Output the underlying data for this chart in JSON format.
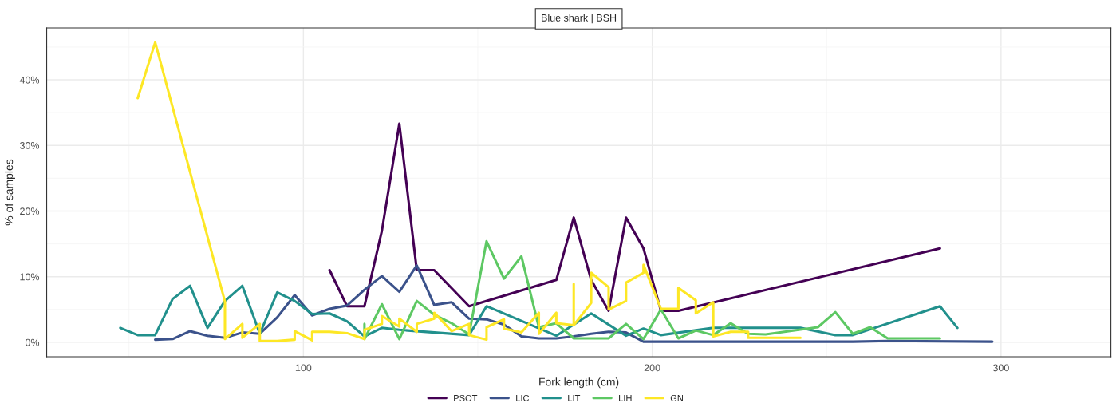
{
  "chart_data": {
    "type": "line",
    "title": "Blue shark | BSH",
    "xlabel": "Fork length (cm)",
    "ylabel": "% of samples",
    "xlim": [
      26.4,
      331.5
    ],
    "ylim": [
      -2.2,
      47.9
    ],
    "xticks": [
      100,
      200,
      300
    ],
    "yticks": [
      {
        "value": 0,
        "label": "0%"
      },
      {
        "value": 10,
        "label": "10%"
      },
      {
        "value": 20,
        "label": "20%"
      },
      {
        "value": 30,
        "label": "30%"
      },
      {
        "value": 40,
        "label": "40%"
      }
    ],
    "grid": true,
    "legend": "bottom",
    "line_style": "solid",
    "marker": "none",
    "series": [
      {
        "name": "PSOT",
        "color": "#440154",
        "x": [
          107.5,
          112.5,
          117.5,
          122.5,
          127.5,
          132.5,
          137.5,
          147.5,
          172.5,
          177.5,
          182.5,
          187.5,
          192.5,
          197.5,
          202.5,
          207.5,
          282.5
        ],
        "values": [
          11,
          5.5,
          5.5,
          17,
          33.3,
          11,
          11,
          5.5,
          9.5,
          19,
          9.5,
          4.8,
          19,
          14.3,
          4.8,
          4.8,
          14.3
        ]
      },
      {
        "name": "LIC",
        "color": "#3b528b",
        "x": [
          57.5,
          62.5,
          67.5,
          72.5,
          77.5,
          82.5,
          87.5,
          92.5,
          97.5,
          102.5,
          107.5,
          112.5,
          117.5,
          122.5,
          127.5,
          132.5,
          137.5,
          142.5,
          147.5,
          152.5,
          157.5,
          162.5,
          167.5,
          172.5,
          177.5,
          182.5,
          187.5,
          192.5,
          197.5,
          217.5,
          257.5,
          267.5,
          297.5
        ],
        "values": [
          0.4,
          0.5,
          1.7,
          1.0,
          0.7,
          1.5,
          1.3,
          3.8,
          7.2,
          4.1,
          5.1,
          5.6,
          8.0,
          10.1,
          7.7,
          11.7,
          5.7,
          6.1,
          3.6,
          3.5,
          2.7,
          0.9,
          0.6,
          0.6,
          0.9,
          1.3,
          1.6,
          1.5,
          0.1,
          0.1,
          0.1,
          0.2,
          0.1
        ]
      },
      {
        "name": "LIT",
        "color": "#21908c",
        "x": [
          47.5,
          52.5,
          57.5,
          62.5,
          67.5,
          72.5,
          77.5,
          82.5,
          87.5,
          92.5,
          97.5,
          102.5,
          107.5,
          112.5,
          117.5,
          122.5,
          127.5,
          147.5,
          152.5,
          172.5,
          182.5,
          192.5,
          197.5,
          202.5,
          217.5,
          242.5,
          252.5,
          257.5,
          282.5,
          287.5
        ],
        "values": [
          2.2,
          1.1,
          1.1,
          6.6,
          8.6,
          2.2,
          6.3,
          8.6,
          1.3,
          7.6,
          6.3,
          4.3,
          4.4,
          3.2,
          0.9,
          2.2,
          1.9,
          1.1,
          5.5,
          1.0,
          4.4,
          1.0,
          2.1,
          1.1,
          2.2,
          2.2,
          1.1,
          1.1,
          5.5,
          2.2
        ]
      },
      {
        "name": "LIH",
        "color": "#5dc863",
        "x": [
          117.5,
          117.5,
          122.5,
          127.5,
          132.5,
          137.5,
          142.5,
          147.5,
          152.5,
          157.5,
          162.5,
          167.5,
          172.5,
          177.5,
          187.5,
          192.5,
          197.5,
          202.5,
          207.5,
          212.5,
          217.5,
          222.5,
          227.5,
          232.5,
          247.5,
          252.5,
          257.5,
          262.5,
          267.5,
          282.5
        ],
        "values": [
          2.8,
          0.5,
          5.8,
          0.5,
          6.3,
          4.2,
          2.9,
          1.2,
          15.4,
          9.7,
          13.1,
          2.3,
          2.9,
          0.6,
          0.6,
          2.8,
          0.5,
          5.0,
          0.6,
          1.8,
          1.1,
          2.9,
          1.3,
          1.2,
          2.3,
          4.6,
          1.3,
          2.3,
          0.6,
          0.6
        ]
      },
      {
        "name": "GN",
        "color": "#fde725",
        "x": [
          52.5,
          57.5,
          77.5,
          77.5,
          82.5,
          82.5,
          87.5,
          87.5,
          92.5,
          97.5,
          97.5,
          102.5,
          102.5,
          107.5,
          112.5,
          117.5,
          117.5,
          122.5,
          122.5,
          127.5,
          127.5,
          132.5,
          132.5,
          137.5,
          137.5,
          142.5,
          147.5,
          147.5,
          152.5,
          152.5,
          157.5,
          157.5,
          162.5,
          167.5,
          167.5,
          172.5,
          172.5,
          177.5,
          177.5,
          177.5,
          182.5,
          182.5,
          187.5,
          187.5,
          192.5,
          192.5,
          197.5,
          197.5,
          202.5,
          207.5,
          207.5,
          212.5,
          212.5,
          217.5,
          217.5,
          222.5,
          227.5,
          227.5,
          242.5
        ],
        "values": [
          37.2,
          45.7,
          6.2,
          0.5,
          2.8,
          0.7,
          2.8,
          0.2,
          0.2,
          0.4,
          1.7,
          0.3,
          1.6,
          1.6,
          1.4,
          0.5,
          1.9,
          2.8,
          4.0,
          2.4,
          3.6,
          1.6,
          2.8,
          3.6,
          4.5,
          1.7,
          2.8,
          1.1,
          0.4,
          2.3,
          3.5,
          2.1,
          1.5,
          4.5,
          1.3,
          4.5,
          2.9,
          2.6,
          8.9,
          2.6,
          6.0,
          10.6,
          8.4,
          5.0,
          6.3,
          9.1,
          10.6,
          11.8,
          5.1,
          5.1,
          8.3,
          6.4,
          4.4,
          6.1,
          0.9,
          1.6,
          1.6,
          0.7,
          0.7
        ]
      }
    ]
  }
}
